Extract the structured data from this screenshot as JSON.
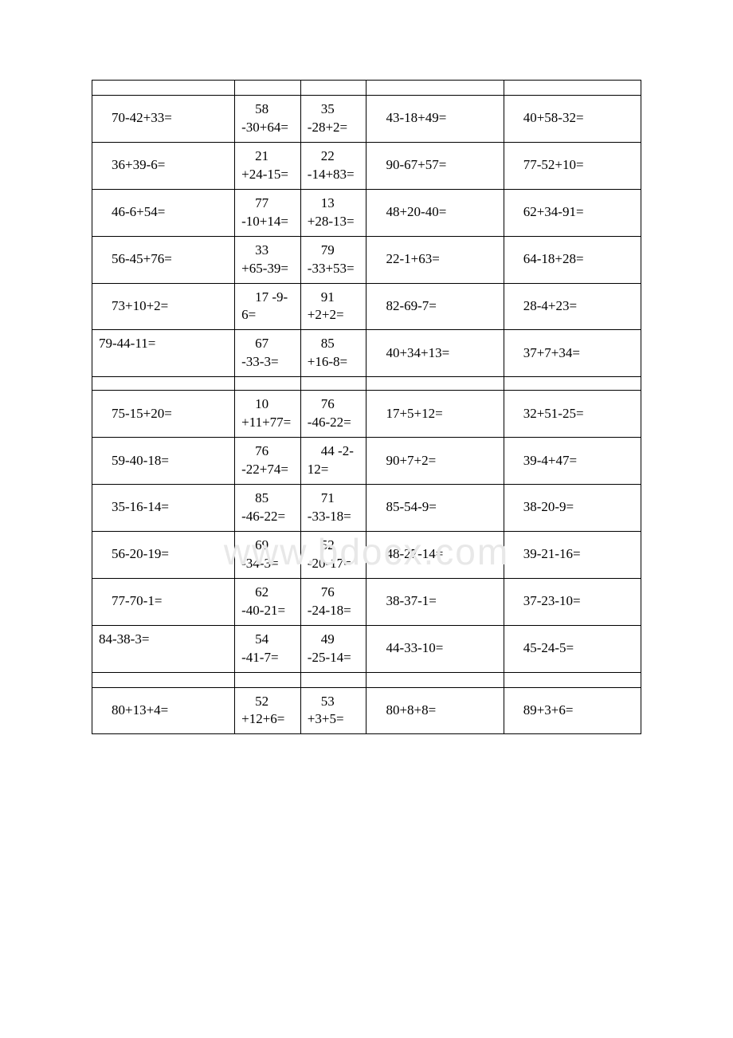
{
  "watermark": "www.bdocx.com",
  "table": {
    "rows": [
      {
        "type": "empty"
      },
      {
        "type": "data",
        "c1": "70-42+33=",
        "c2": "　58 -30+64=",
        "c3": "　35 -28+2=",
        "c4": "43-18+49=",
        "c5": "40+58-32=",
        "c1_class": "pad-left"
      },
      {
        "type": "data",
        "c1": "36+39-6=",
        "c2": "　21 +24-15=",
        "c3": "　22 -14+83=",
        "c4": "90-67+57=",
        "c5": "77-52+10=",
        "c1_class": "pad-left"
      },
      {
        "type": "data",
        "c1": "46-6+54=",
        "c2": "　77 -10+14=",
        "c3": "　13 +28-13=",
        "c4": "48+20-40=",
        "c5": "62+34-91=",
        "c1_class": "pad-left"
      },
      {
        "type": "data",
        "c1": "56-45+76=",
        "c2": "　33 +65-39=",
        "c3": "　79 -33+53=",
        "c4": "22-1+63=",
        "c5": "64-18+28=",
        "c1_class": "pad-left"
      },
      {
        "type": "data",
        "c1": "73+10+2=",
        "c2": "　17 -9-6=",
        "c3": "　91 +2+2=",
        "c4": "82-69-7=",
        "c5": "28-4+23=",
        "c1_class": "pad-left"
      },
      {
        "type": "data",
        "c1": "79-44-11=",
        "c2": "　67 -33-3=",
        "c3": "　85 +16-8=",
        "c4": "40+34+13=",
        "c5": "37+7+34=",
        "c1_class": "top-align"
      },
      {
        "type": "split"
      },
      {
        "type": "data",
        "c1": "75-15+20=",
        "c2": "　10 +11+77=",
        "c3": "　76 -46-22=",
        "c4": "17+5+12=",
        "c5": "32+51-25=",
        "c1_class": "pad-left"
      },
      {
        "type": "data",
        "c1": "59-40-18=",
        "c2": "　76 -22+74=",
        "c3": "　44 -2-12=",
        "c4": "90+7+2=",
        "c5": "39-4+47=",
        "c1_class": "pad-left"
      },
      {
        "type": "data",
        "c1": "35-16-14=",
        "c2": "　85 -46-22=",
        "c3": "　71 -33-18=",
        "c4": "85-54-9=",
        "c5": "38-20-9=",
        "c1_class": "pad-left"
      },
      {
        "type": "data",
        "c1": "56-20-19=",
        "c2": "　69 -34-3=",
        "c3": "　52 -20-17=",
        "c4": "48-27-14=",
        "c5": "39-21-16=",
        "c1_class": "pad-left"
      },
      {
        "type": "data",
        "c1": "77-70-1=",
        "c2": "　62 -40-21=",
        "c3": "　76 -24-18=",
        "c4": "38-37-1=",
        "c5": "37-23-10=",
        "c1_class": "pad-left"
      },
      {
        "type": "data",
        "c1": "84-38-3=",
        "c2": "　54 -41-7=",
        "c3": "　49 -25-14=",
        "c4": "44-33-10=",
        "c5": "45-24-5=",
        "c1_class": "top-align"
      },
      {
        "type": "empty"
      },
      {
        "type": "data",
        "c1": "80+13+4=",
        "c2": "　52 +12+6=",
        "c3": "　53 +3+5=",
        "c4": "80+8+8=",
        "c5": "89+3+6=",
        "c1_class": "pad-left"
      }
    ]
  }
}
